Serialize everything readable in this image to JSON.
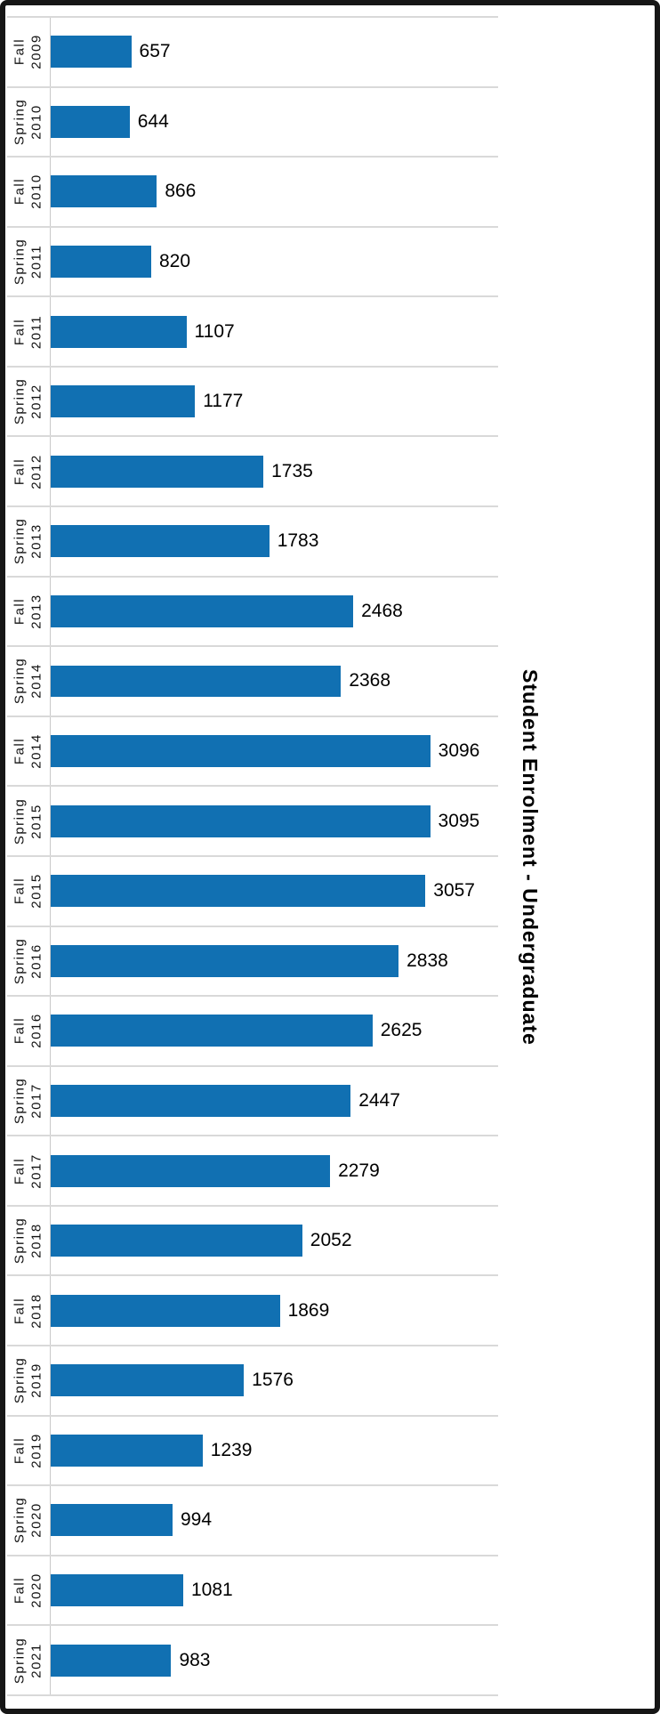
{
  "chart_data": {
    "type": "bar",
    "orientation": "horizontal",
    "title": "Student Enrolment - Undergraduate",
    "categories": [
      "Fall 2009",
      "Spring 2010",
      "Fall 2010",
      "Spring 2011",
      "Fall 2011",
      "Spring 2012",
      "Fall 2012",
      "Spring 2013",
      "Fall 2013",
      "Spring 2014",
      "Fall 2014",
      "Spring 2015",
      "Fall 2015",
      "Spring 2016",
      "Fall 2016",
      "Spring 2017",
      "Fall 2017",
      "Spring 2018",
      "Fall 2018",
      "Spring 2019",
      "Fall 2019",
      "Spring 2020",
      "Fall 2020",
      "Spring 2021"
    ],
    "values": [
      657,
      644,
      866,
      820,
      1107,
      1177,
      1735,
      1783,
      2468,
      2368,
      3096,
      3095,
      3057,
      2838,
      2625,
      2447,
      2279,
      2052,
      1869,
      1576,
      1239,
      994,
      1081,
      983
    ],
    "xlabel": "",
    "ylabel": "",
    "xlim": [
      0,
      3650
    ],
    "grid": true,
    "legend": false,
    "bar_color": "#1170b2",
    "gridline_color": "#d9d9d9",
    "value_label_color": "#000000"
  }
}
